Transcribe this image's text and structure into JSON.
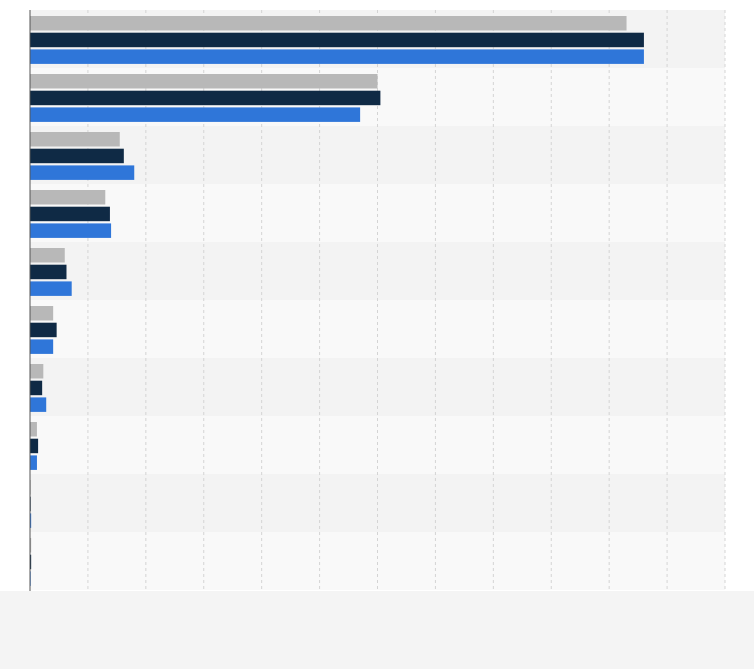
{
  "chart_data": {
    "type": "bar",
    "orientation": "horizontal",
    "categories": [
      "",
      "",
      "",
      "",
      "",
      "",
      "",
      "",
      "",
      ""
    ],
    "series": [
      {
        "values": [
          103,
          60,
          15.5,
          13,
          6,
          4,
          2.3,
          1.2,
          0.1,
          0.2
        ]
      },
      {
        "values": [
          106,
          60.5,
          16.2,
          13.8,
          6.3,
          4.6,
          2.1,
          1.4,
          0.1,
          0.2
        ]
      },
      {
        "values": [
          106,
          57,
          18,
          14,
          7.2,
          4,
          2.8,
          1.2,
          0.2,
          0.1
        ]
      }
    ],
    "xlim": [
      0,
      120
    ],
    "grid": true,
    "legend": "none",
    "colors": {
      "series": [
        "#b8b8b8",
        "#0f2a45",
        "#2f76d9"
      ],
      "band_a": "#f3f3f3",
      "band_b": "#f9f9f9",
      "grid": "#d4d4d4",
      "axis": "#555555",
      "footer": "#f4f4f4"
    }
  }
}
